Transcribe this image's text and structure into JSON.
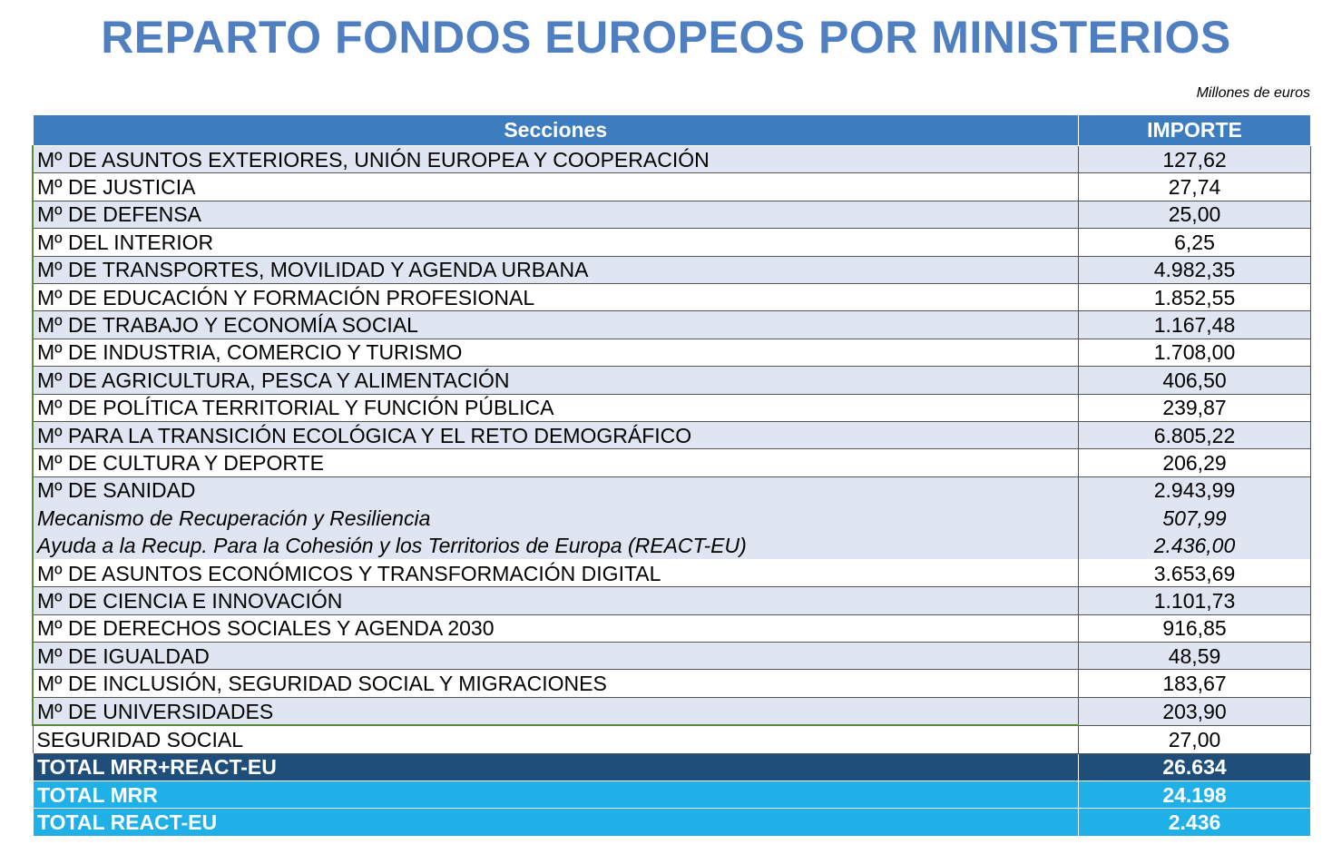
{
  "title": "REPARTO FONDOS EUROPEOS POR MINISTERIOS",
  "unit": "Millones de euros",
  "table": {
    "header": [
      "Secciones",
      "IMPORTE"
    ],
    "rows": [
      [
        "Mº DE ASUNTOS EXTERIORES, UNIÓN EUROPEA Y COOPERACIÓN",
        "127,62"
      ],
      [
        "Mº DE JUSTICIA",
        "27,74"
      ],
      [
        "Mº DE DEFENSA",
        "25,00"
      ],
      [
        "Mº DEL INTERIOR",
        "6,25"
      ],
      [
        "Mº DE TRANSPORTES, MOVILIDAD Y AGENDA URBANA",
        "4.982,35"
      ],
      [
        "Mº DE EDUCACIÓN Y FORMACIÓN PROFESIONAL",
        "1.852,55"
      ],
      [
        "Mº DE TRABAJO Y ECONOMÍA SOCIAL",
        "1.167,48"
      ],
      [
        "Mº DE INDUSTRIA, COMERCIO Y  TURISMO",
        "1.708,00"
      ],
      [
        "Mº DE AGRICULTURA, PESCA Y ALIMENTACIÓN",
        "406,50"
      ],
      [
        "Mº DE POLÍTICA TERRITORIAL Y FUNCIÓN PÚBLICA",
        "239,87"
      ],
      [
        "Mº PARA LA TRANSICIÓN ECOLÓGICA Y EL RETO DEMOGRÁFICO",
        "6.805,22"
      ],
      [
        "Mº DE CULTURA Y DEPORTE",
        "206,29"
      ],
      [
        "Mº DE SANIDAD",
        "2.943,99"
      ],
      [
        "Mecanismo de Recuperación y Resiliencia",
        "507,99"
      ],
      [
        "Ayuda a la Recup. Para la Cohesión y los Territorios de Europa (REACT-EU)",
        "2.436,00"
      ],
      [
        "Mº DE ASUNTOS ECONÓMICOS Y TRANSFORMACIÓN DIGITAL",
        "3.653,69"
      ],
      [
        "Mº DE CIENCIA E INNOVACIÓN",
        "1.101,73"
      ],
      [
        "Mº DE DERECHOS SOCIALES Y AGENDA 2030",
        "916,85"
      ],
      [
        "Mº DE IGUALDAD",
        "48,59"
      ],
      [
        "Mº DE INCLUSIÓN, SEGURIDAD SOCIAL Y MIGRACIONES",
        "183,67"
      ],
      [
        "Mº DE UNIVERSIDADES",
        "203,90"
      ],
      [
        "SEGURIDAD SOCIAL",
        "27,00"
      ],
      [
        "TOTAL MRR+REACT-EU",
        "26.634"
      ],
      [
        "TOTAL MRR",
        "24.198"
      ],
      [
        "TOTAL REACT-EU",
        "2.436"
      ]
    ]
  }
}
